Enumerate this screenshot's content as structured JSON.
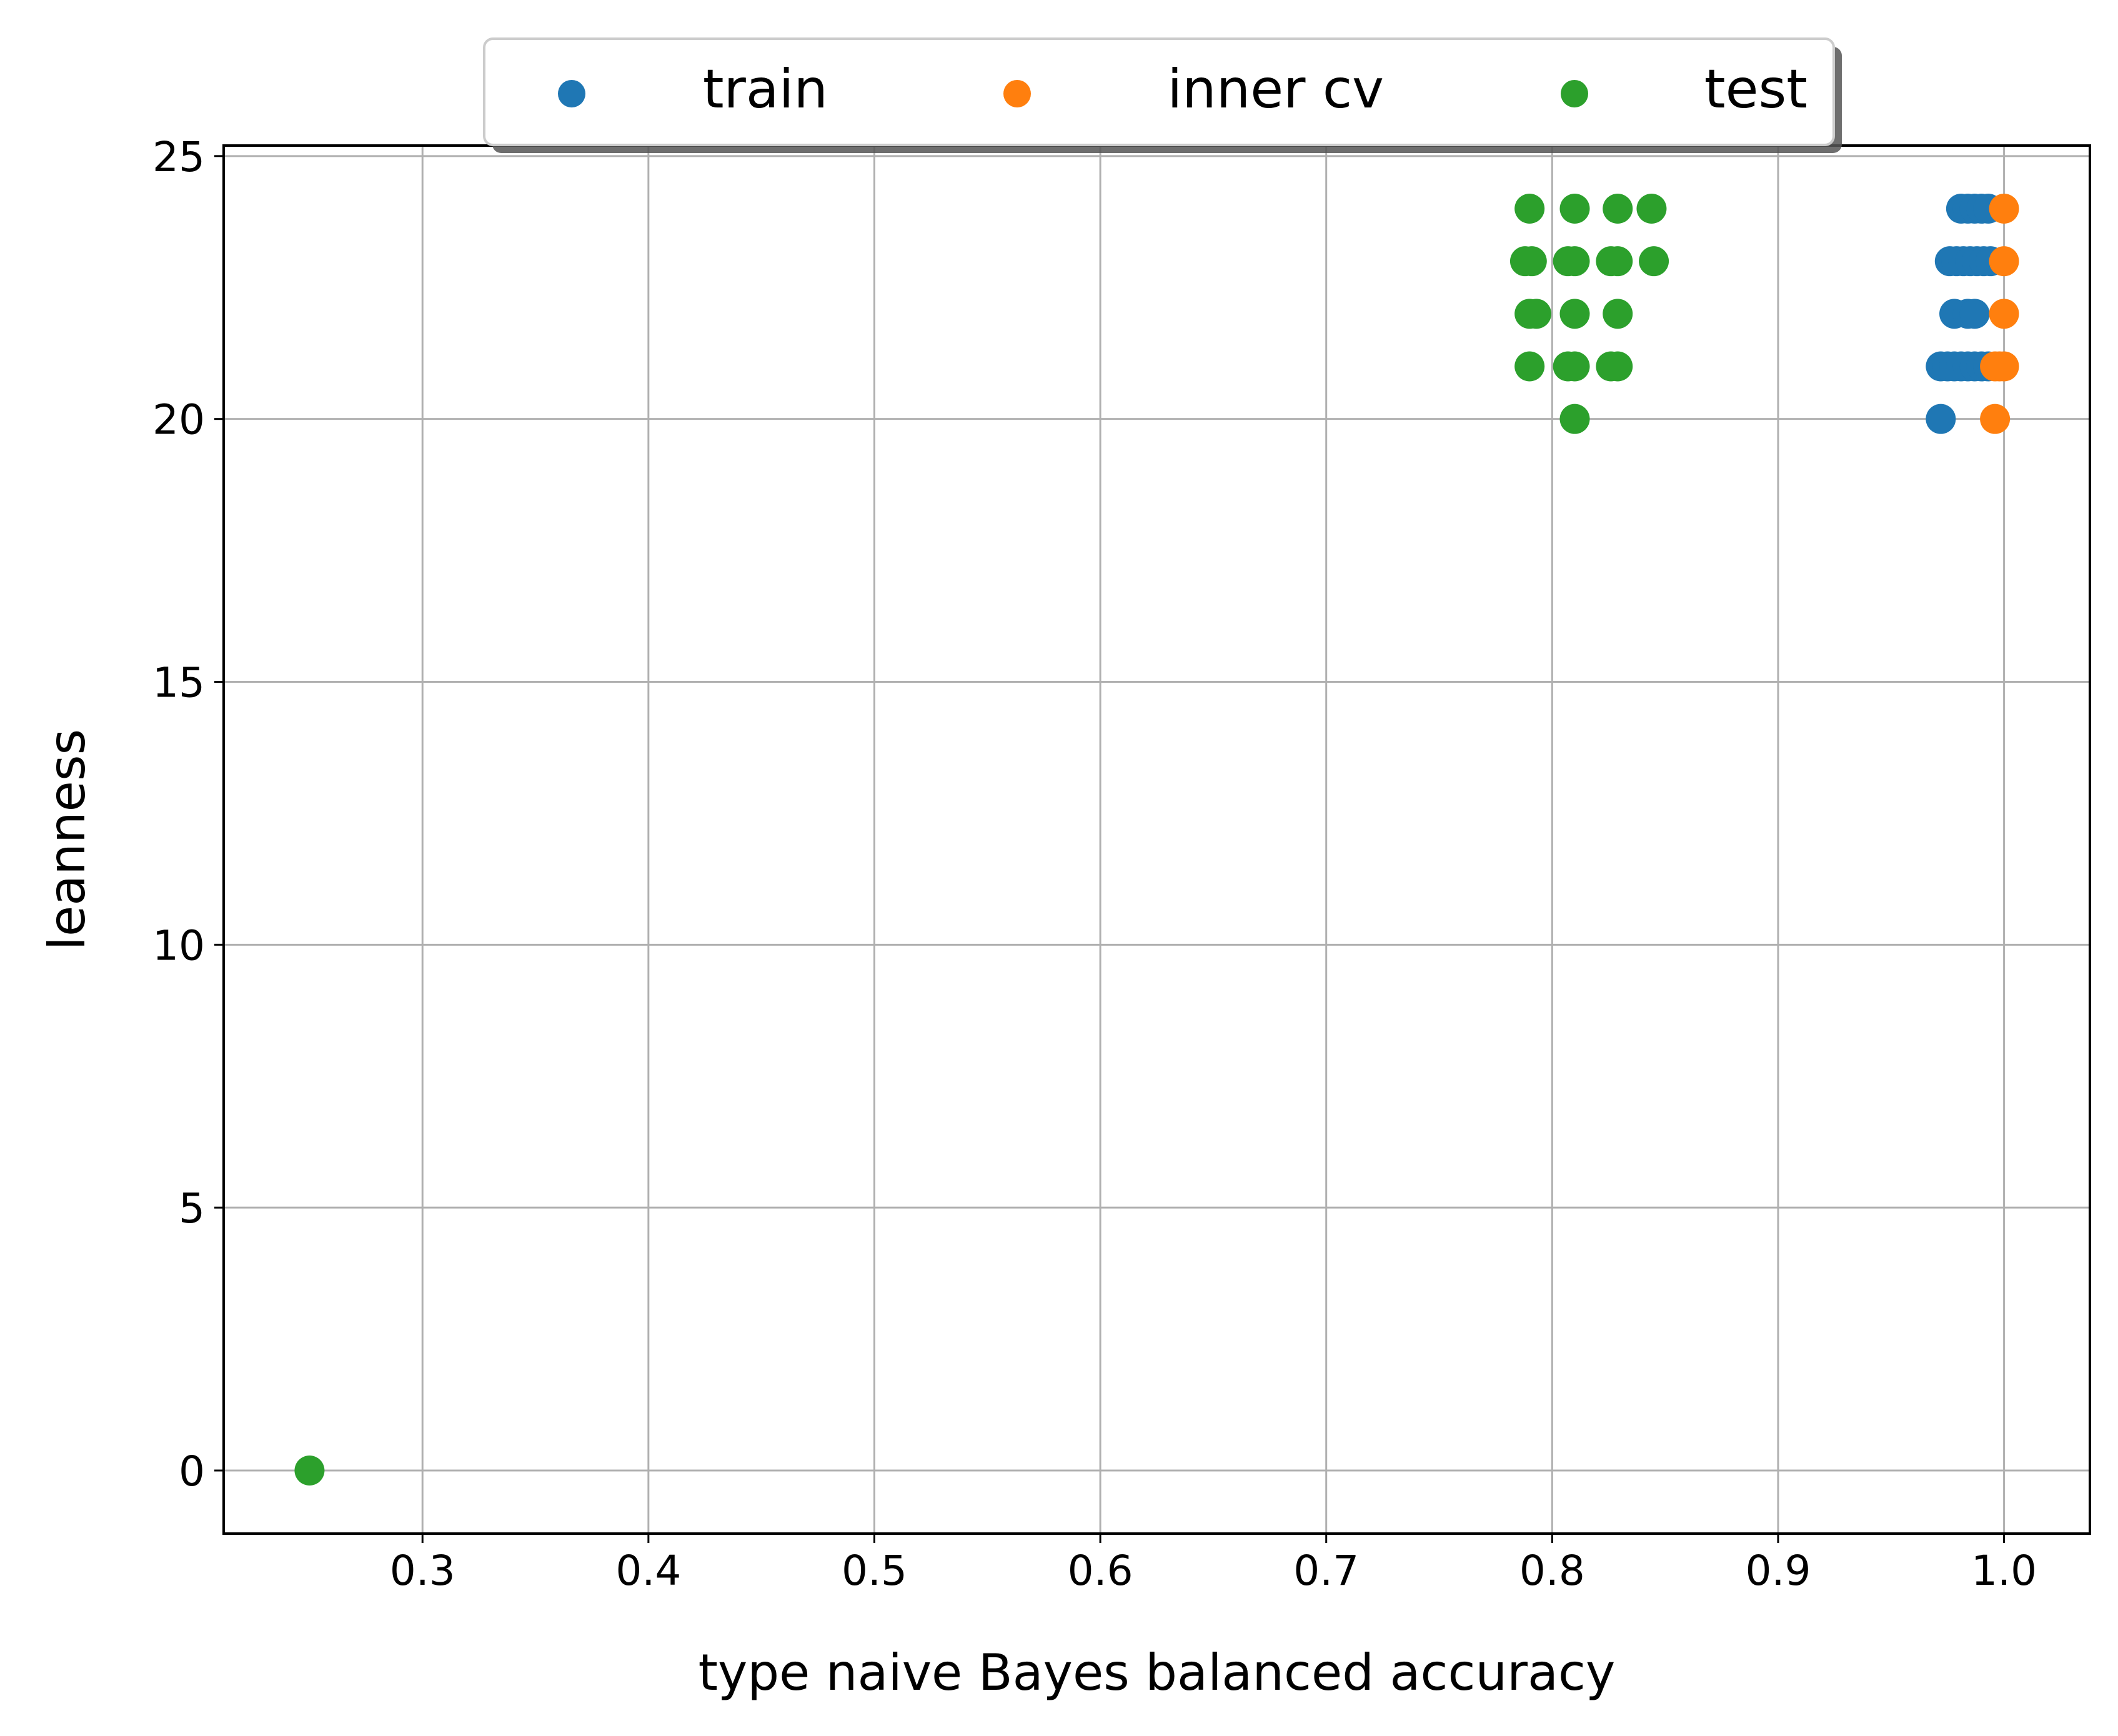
{
  "chart_data": {
    "type": "scatter",
    "title": "",
    "xlabel": "type naive Bayes balanced accuracy",
    "ylabel": "leanness",
    "xlim": [
      0.212,
      1.038
    ],
    "ylim": [
      -1.2,
      25.2
    ],
    "xticks": [
      "0.3",
      "0.4",
      "0.5",
      "0.6",
      "0.7",
      "0.8",
      "0.9",
      "1.0"
    ],
    "yticks": [
      "0",
      "5",
      "10",
      "15",
      "20",
      "25"
    ],
    "grid": true,
    "legend_position": "top-center",
    "series": [
      {
        "name": "train",
        "color": "#1f77b4",
        "points": [
          [
            0.972,
            20
          ],
          [
            0.972,
            21
          ],
          [
            0.975,
            21
          ],
          [
            0.978,
            21
          ],
          [
            0.981,
            21
          ],
          [
            0.984,
            21
          ],
          [
            0.987,
            21
          ],
          [
            0.99,
            21
          ],
          [
            0.993,
            21
          ],
          [
            0.978,
            22
          ],
          [
            0.984,
            22
          ],
          [
            0.987,
            22
          ],
          [
            0.976,
            23
          ],
          [
            0.979,
            23
          ],
          [
            0.982,
            23
          ],
          [
            0.985,
            23
          ],
          [
            0.988,
            23
          ],
          [
            0.991,
            23
          ],
          [
            0.994,
            23
          ],
          [
            0.981,
            24
          ],
          [
            0.984,
            24
          ],
          [
            0.987,
            24
          ],
          [
            0.99,
            24
          ],
          [
            0.993,
            24
          ]
        ]
      },
      {
        "name": "inner cv",
        "color": "#ff7f0e",
        "points": [
          [
            0.996,
            20
          ],
          [
            0.996,
            21
          ],
          [
            0.998,
            21
          ],
          [
            1.0,
            21
          ],
          [
            1.0,
            22
          ],
          [
            1.0,
            23
          ],
          [
            1.0,
            24
          ]
        ]
      },
      {
        "name": "test",
        "color": "#2ca02c",
        "points": [
          [
            0.25,
            0
          ],
          [
            0.81,
            20
          ],
          [
            0.79,
            21
          ],
          [
            0.807,
            21
          ],
          [
            0.81,
            21
          ],
          [
            0.826,
            21
          ],
          [
            0.829,
            21
          ],
          [
            0.79,
            22
          ],
          [
            0.793,
            22
          ],
          [
            0.81,
            22
          ],
          [
            0.829,
            22
          ],
          [
            0.788,
            23
          ],
          [
            0.791,
            23
          ],
          [
            0.807,
            23
          ],
          [
            0.81,
            23
          ],
          [
            0.826,
            23
          ],
          [
            0.829,
            23
          ],
          [
            0.845,
            23
          ],
          [
            0.79,
            24
          ],
          [
            0.81,
            24
          ],
          [
            0.829,
            24
          ],
          [
            0.844,
            24
          ]
        ]
      }
    ]
  }
}
